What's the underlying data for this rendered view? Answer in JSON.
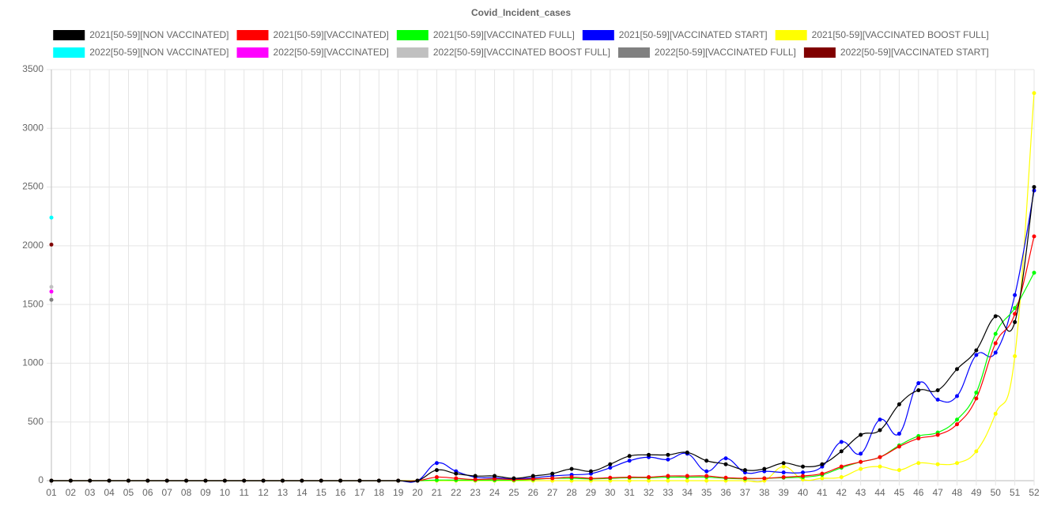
{
  "chart_data": {
    "type": "line",
    "title": "Covid_Incident_cases",
    "categories": [
      "01",
      "02",
      "03",
      "04",
      "05",
      "06",
      "07",
      "08",
      "09",
      "10",
      "11",
      "12",
      "13",
      "14",
      "15",
      "16",
      "17",
      "18",
      "19",
      "20",
      "21",
      "22",
      "23",
      "24",
      "25",
      "26",
      "27",
      "28",
      "29",
      "30",
      "31",
      "32",
      "33",
      "34",
      "35",
      "36",
      "37",
      "38",
      "39",
      "40",
      "41",
      "42",
      "43",
      "44",
      "45",
      "46",
      "47",
      "48",
      "49",
      "50",
      "51",
      "52"
    ],
    "ylim": [
      0,
      3500
    ],
    "yticks": [
      0,
      500,
      1000,
      1500,
      2000,
      2500,
      3000,
      3500
    ],
    "grid": true,
    "series": [
      {
        "name": "2021[50-59][NON VACCINATED]",
        "color": "#000000",
        "values": [
          0,
          0,
          0,
          0,
          0,
          0,
          0,
          0,
          0,
          0,
          0,
          0,
          0,
          0,
          0,
          0,
          0,
          0,
          0,
          0,
          90,
          60,
          40,
          40,
          20,
          40,
          60,
          100,
          80,
          140,
          210,
          220,
          220,
          240,
          170,
          140,
          90,
          100,
          150,
          120,
          140,
          250,
          390,
          430,
          650,
          770,
          770,
          950,
          1110,
          1400,
          1350,
          2500
        ]
      },
      {
        "name": "2021[50-59][VACCINATED]",
        "color": "#ff0000",
        "values": [
          0,
          0,
          0,
          0,
          0,
          0,
          0,
          0,
          0,
          0,
          0,
          0,
          0,
          0,
          0,
          0,
          0,
          0,
          0,
          0,
          30,
          20,
          10,
          15,
          10,
          15,
          20,
          30,
          20,
          25,
          30,
          30,
          40,
          40,
          40,
          25,
          20,
          20,
          30,
          40,
          60,
          120,
          160,
          200,
          290,
          360,
          390,
          480,
          700,
          1170,
          1420,
          2080
        ]
      },
      {
        "name": "2021[50-59][VACCINATED FULL]",
        "color": "#00ff00",
        "values": [
          0,
          0,
          0,
          0,
          0,
          0,
          0,
          0,
          0,
          0,
          0,
          0,
          0,
          0,
          0,
          0,
          0,
          0,
          0,
          0,
          5,
          5,
          5,
          5,
          5,
          10,
          20,
          20,
          15,
          20,
          25,
          25,
          30,
          30,
          30,
          20,
          15,
          20,
          25,
          30,
          50,
          110,
          160,
          200,
          300,
          380,
          410,
          520,
          750,
          1250,
          1470,
          1770
        ]
      },
      {
        "name": "2021[50-59][VACCINATED START]",
        "color": "#0000ff",
        "values": [
          0,
          0,
          0,
          0,
          0,
          0,
          0,
          0,
          0,
          0,
          0,
          0,
          0,
          0,
          0,
          0,
          0,
          0,
          0,
          0,
          150,
          80,
          30,
          25,
          15,
          25,
          40,
          50,
          60,
          110,
          170,
          200,
          180,
          230,
          80,
          190,
          70,
          80,
          70,
          70,
          120,
          330,
          230,
          520,
          400,
          830,
          690,
          720,
          1070,
          1090,
          1580,
          2470
        ]
      },
      {
        "name": "2021[50-59][VACCINATED BOOST FULL]",
        "color": "#ffff00",
        "values": [
          0,
          0,
          0,
          0,
          0,
          0,
          0,
          0,
          0,
          0,
          0,
          0,
          0,
          0,
          0,
          0,
          0,
          0,
          0,
          0,
          0,
          0,
          0,
          0,
          0,
          0,
          0,
          0,
          0,
          0,
          0,
          0,
          0,
          0,
          0,
          0,
          0,
          0,
          120,
          10,
          20,
          30,
          100,
          120,
          90,
          150,
          140,
          150,
          250,
          570,
          1060,
          3300
        ]
      },
      {
        "name": "2022[50-59][NON VACCINATED]",
        "color": "#00ffff",
        "values": [
          2240,
          null,
          null,
          null,
          null,
          null,
          null,
          null,
          null,
          null,
          null,
          null,
          null,
          null,
          null,
          null,
          null,
          null,
          null,
          null,
          null,
          null,
          null,
          null,
          null,
          null,
          null,
          null,
          null,
          null,
          null,
          null,
          null,
          null,
          null,
          null,
          null,
          null,
          null,
          null,
          null,
          null,
          null,
          null,
          null,
          null,
          null,
          null,
          null,
          null,
          null,
          null
        ]
      },
      {
        "name": "2022[50-59][VACCINATED]",
        "color": "#ff00ff",
        "values": [
          1610,
          null,
          null,
          null,
          null,
          null,
          null,
          null,
          null,
          null,
          null,
          null,
          null,
          null,
          null,
          null,
          null,
          null,
          null,
          null,
          null,
          null,
          null,
          null,
          null,
          null,
          null,
          null,
          null,
          null,
          null,
          null,
          null,
          null,
          null,
          null,
          null,
          null,
          null,
          null,
          null,
          null,
          null,
          null,
          null,
          null,
          null,
          null,
          null,
          null,
          null,
          null
        ]
      },
      {
        "name": "2022[50-59][VACCINATED BOOST FULL]",
        "color": "#c0c0c0",
        "values": [
          1650,
          null,
          null,
          null,
          null,
          null,
          null,
          null,
          null,
          null,
          null,
          null,
          null,
          null,
          null,
          null,
          null,
          null,
          null,
          null,
          null,
          null,
          null,
          null,
          null,
          null,
          null,
          null,
          null,
          null,
          null,
          null,
          null,
          null,
          null,
          null,
          null,
          null,
          null,
          null,
          null,
          null,
          null,
          null,
          null,
          null,
          null,
          null,
          null,
          null,
          null,
          null
        ]
      },
      {
        "name": "2022[50-59][VACCINATED FULL]",
        "color": "#808080",
        "values": [
          1540,
          null,
          null,
          null,
          null,
          null,
          null,
          null,
          null,
          null,
          null,
          null,
          null,
          null,
          null,
          null,
          null,
          null,
          null,
          null,
          null,
          null,
          null,
          null,
          null,
          null,
          null,
          null,
          null,
          null,
          null,
          null,
          null,
          null,
          null,
          null,
          null,
          null,
          null,
          null,
          null,
          null,
          null,
          null,
          null,
          null,
          null,
          null,
          null,
          null,
          null,
          null
        ]
      },
      {
        "name": "2022[50-59][VACCINATED START]",
        "color": "#800000",
        "values": [
          2010,
          null,
          null,
          null,
          null,
          null,
          null,
          null,
          null,
          null,
          null,
          null,
          null,
          null,
          null,
          null,
          null,
          null,
          null,
          null,
          null,
          null,
          null,
          null,
          null,
          null,
          null,
          null,
          null,
          null,
          null,
          null,
          null,
          null,
          null,
          null,
          null,
          null,
          null,
          null,
          null,
          null,
          null,
          null,
          null,
          null,
          null,
          null,
          null,
          null,
          null,
          null
        ]
      }
    ]
  }
}
